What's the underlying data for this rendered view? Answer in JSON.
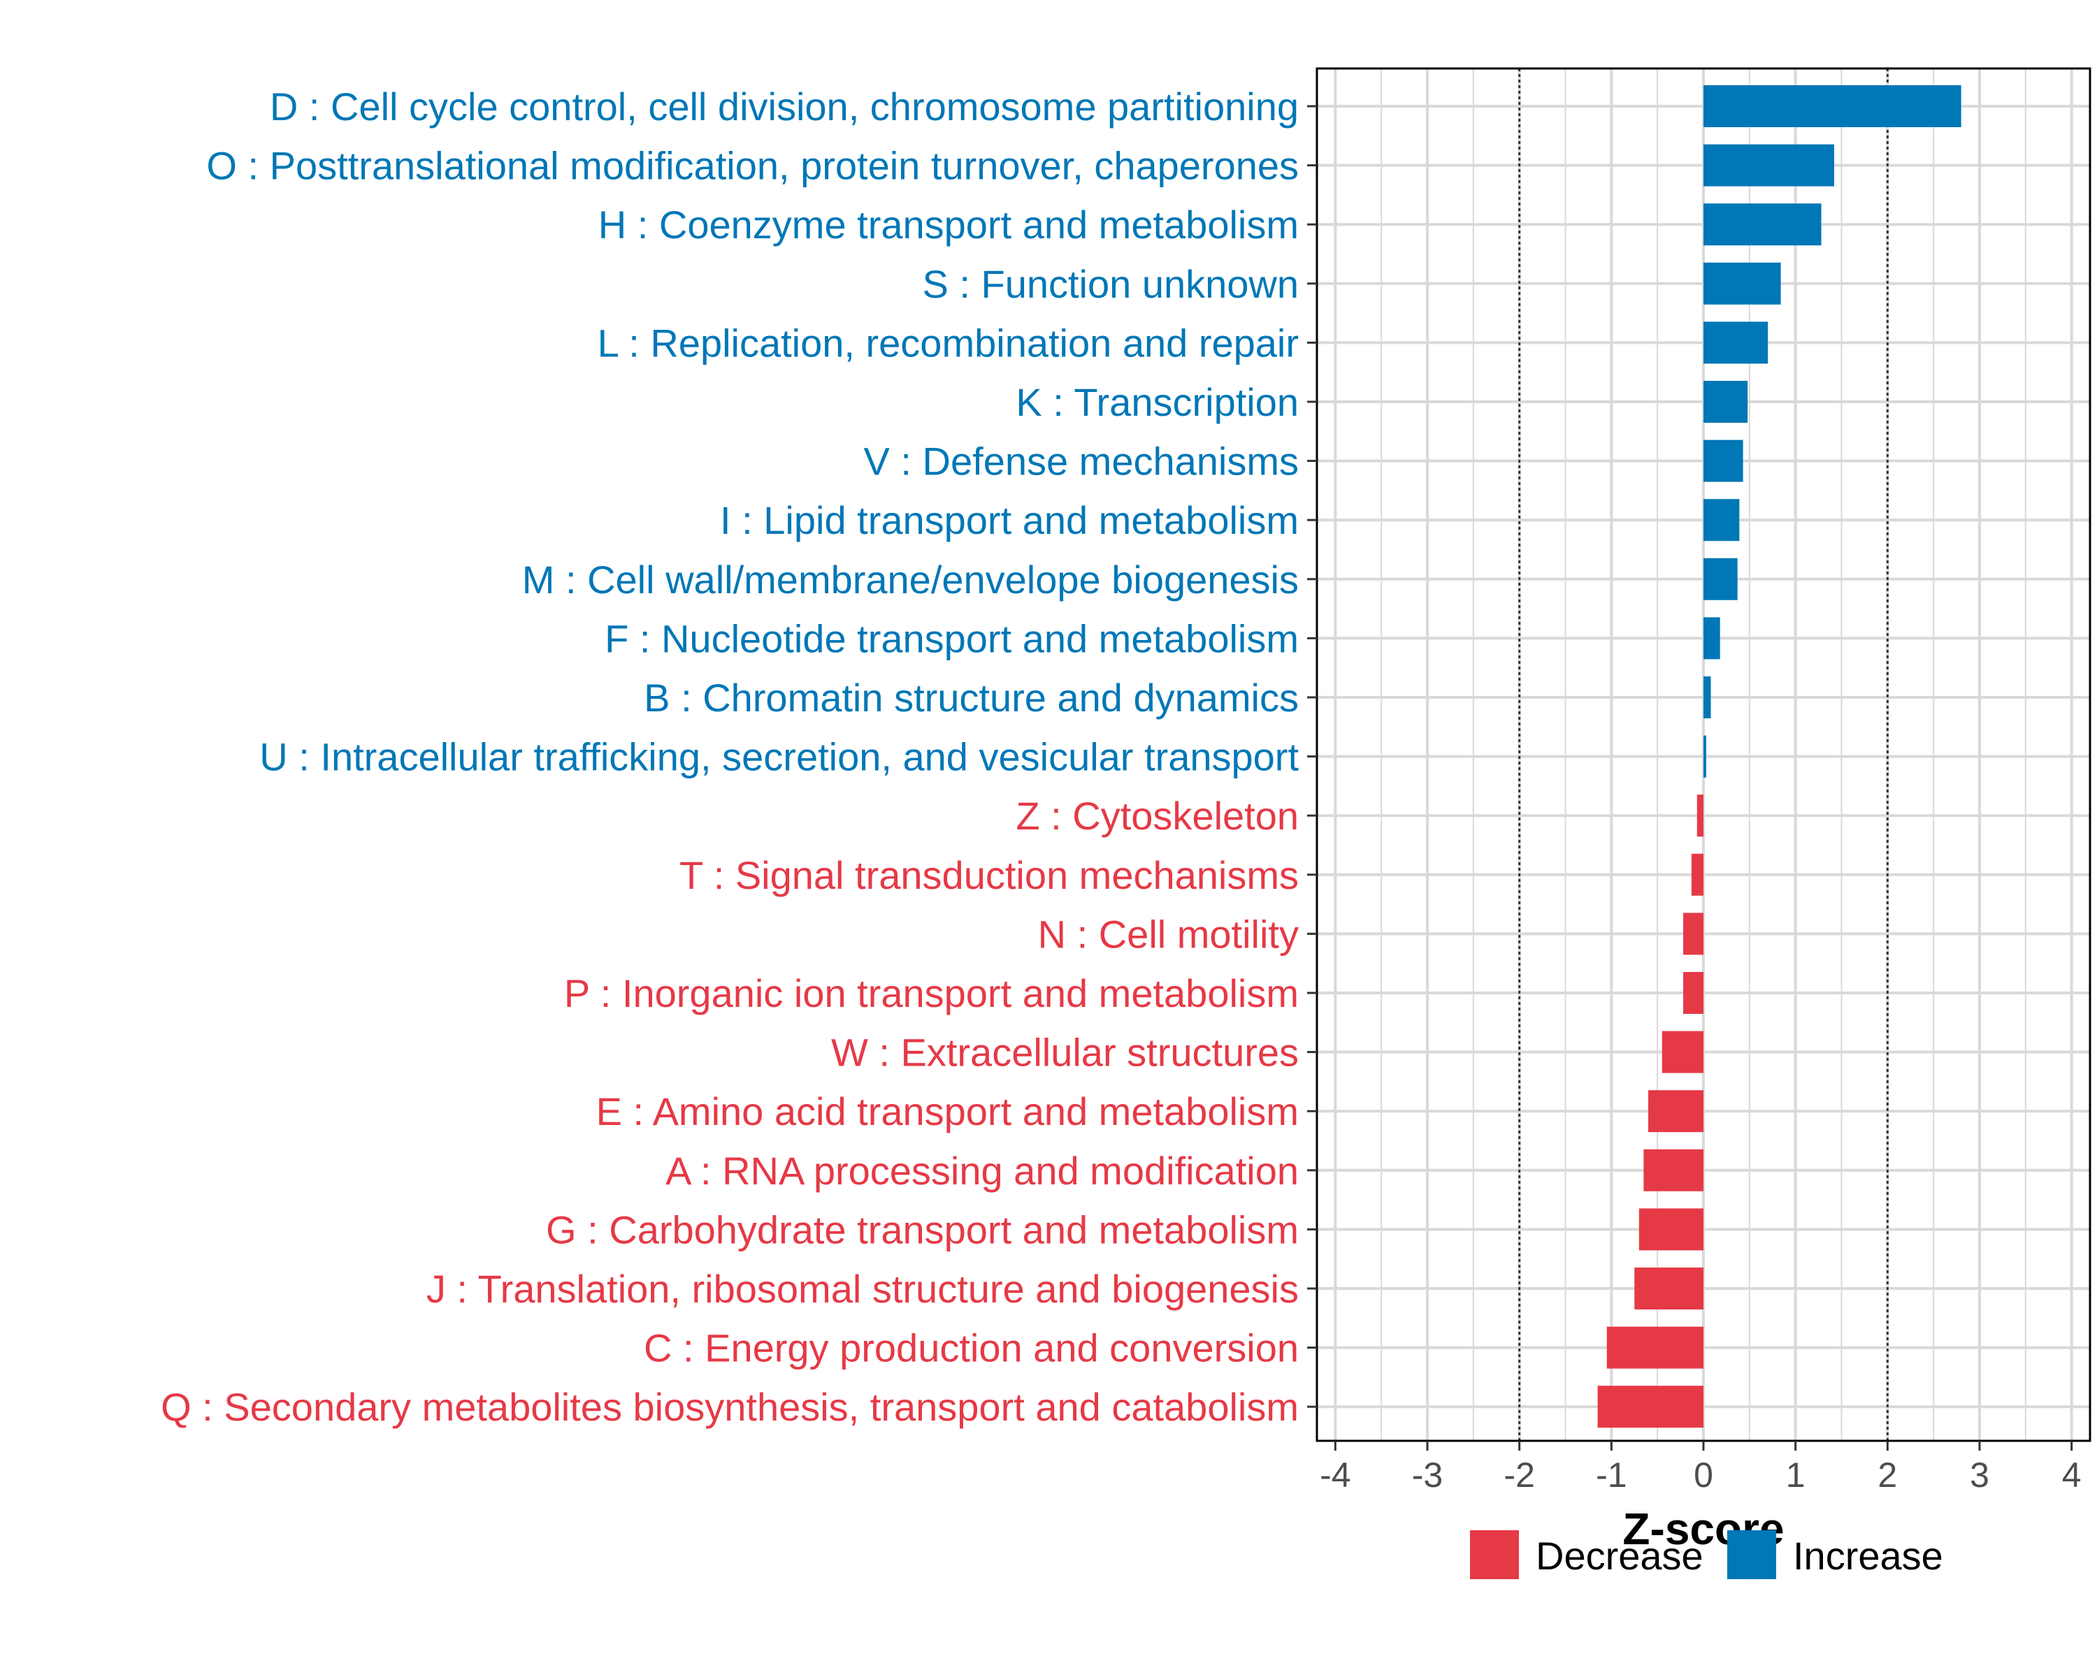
{
  "chart_data": {
    "type": "bar",
    "orientation": "horizontal",
    "title": "",
    "xlabel": "Z-score",
    "ylabel": "",
    "xlim": [
      -4.2,
      4.2
    ],
    "xticks": [
      -4,
      -3,
      -2,
      -1,
      0,
      1,
      2,
      3,
      4
    ],
    "xtick_labels": [
      "-4",
      "-3",
      "-2",
      "-1",
      "0",
      "1",
      "2",
      "3",
      "4"
    ],
    "reference_lines": [
      -2,
      2
    ],
    "grid": true,
    "categories": [
      "D : Cell cycle control, cell division, chromosome partitioning",
      "O : Posttranslational modification, protein turnover, chaperones",
      "H : Coenzyme transport and metabolism",
      "S : Function unknown",
      "L : Replication, recombination and repair",
      "K : Transcription",
      "V : Defense mechanisms",
      "I : Lipid transport and metabolism",
      "M : Cell wall/membrane/envelope biogenesis",
      "F : Nucleotide transport and metabolism",
      "B : Chromatin structure and dynamics",
      "U : Intracellular trafficking, secretion, and vesicular transport",
      "Z : Cytoskeleton",
      "T : Signal transduction mechanisms",
      "N : Cell motility",
      "P : Inorganic ion transport and metabolism",
      "W : Extracellular structures",
      "E : Amino acid transport and metabolism",
      "A : RNA processing and modification",
      "G : Carbohydrate transport and metabolism",
      "J : Translation, ribosomal structure and biogenesis",
      "C : Energy production and conversion",
      "Q : Secondary metabolites biosynthesis, transport and catabolism"
    ],
    "values": [
      2.8,
      1.42,
      1.28,
      0.84,
      0.7,
      0.48,
      0.43,
      0.39,
      0.37,
      0.18,
      0.08,
      0.03,
      -0.07,
      -0.13,
      -0.22,
      -0.22,
      -0.45,
      -0.6,
      -0.65,
      -0.7,
      -0.75,
      -1.05,
      -1.15
    ],
    "groups": [
      "Increase",
      "Increase",
      "Increase",
      "Increase",
      "Increase",
      "Increase",
      "Increase",
      "Increase",
      "Increase",
      "Increase",
      "Increase",
      "Increase",
      "Decrease",
      "Decrease",
      "Decrease",
      "Decrease",
      "Decrease",
      "Decrease",
      "Decrease",
      "Decrease",
      "Decrease",
      "Decrease",
      "Decrease"
    ],
    "legend": {
      "position": "bottom-right",
      "entries": [
        {
          "label": "Decrease",
          "color": "#e63946"
        },
        {
          "label": "Increase",
          "color": "#0077b6"
        }
      ]
    },
    "colors": {
      "Decrease": "#e63946",
      "Increase": "#0077b6"
    }
  }
}
